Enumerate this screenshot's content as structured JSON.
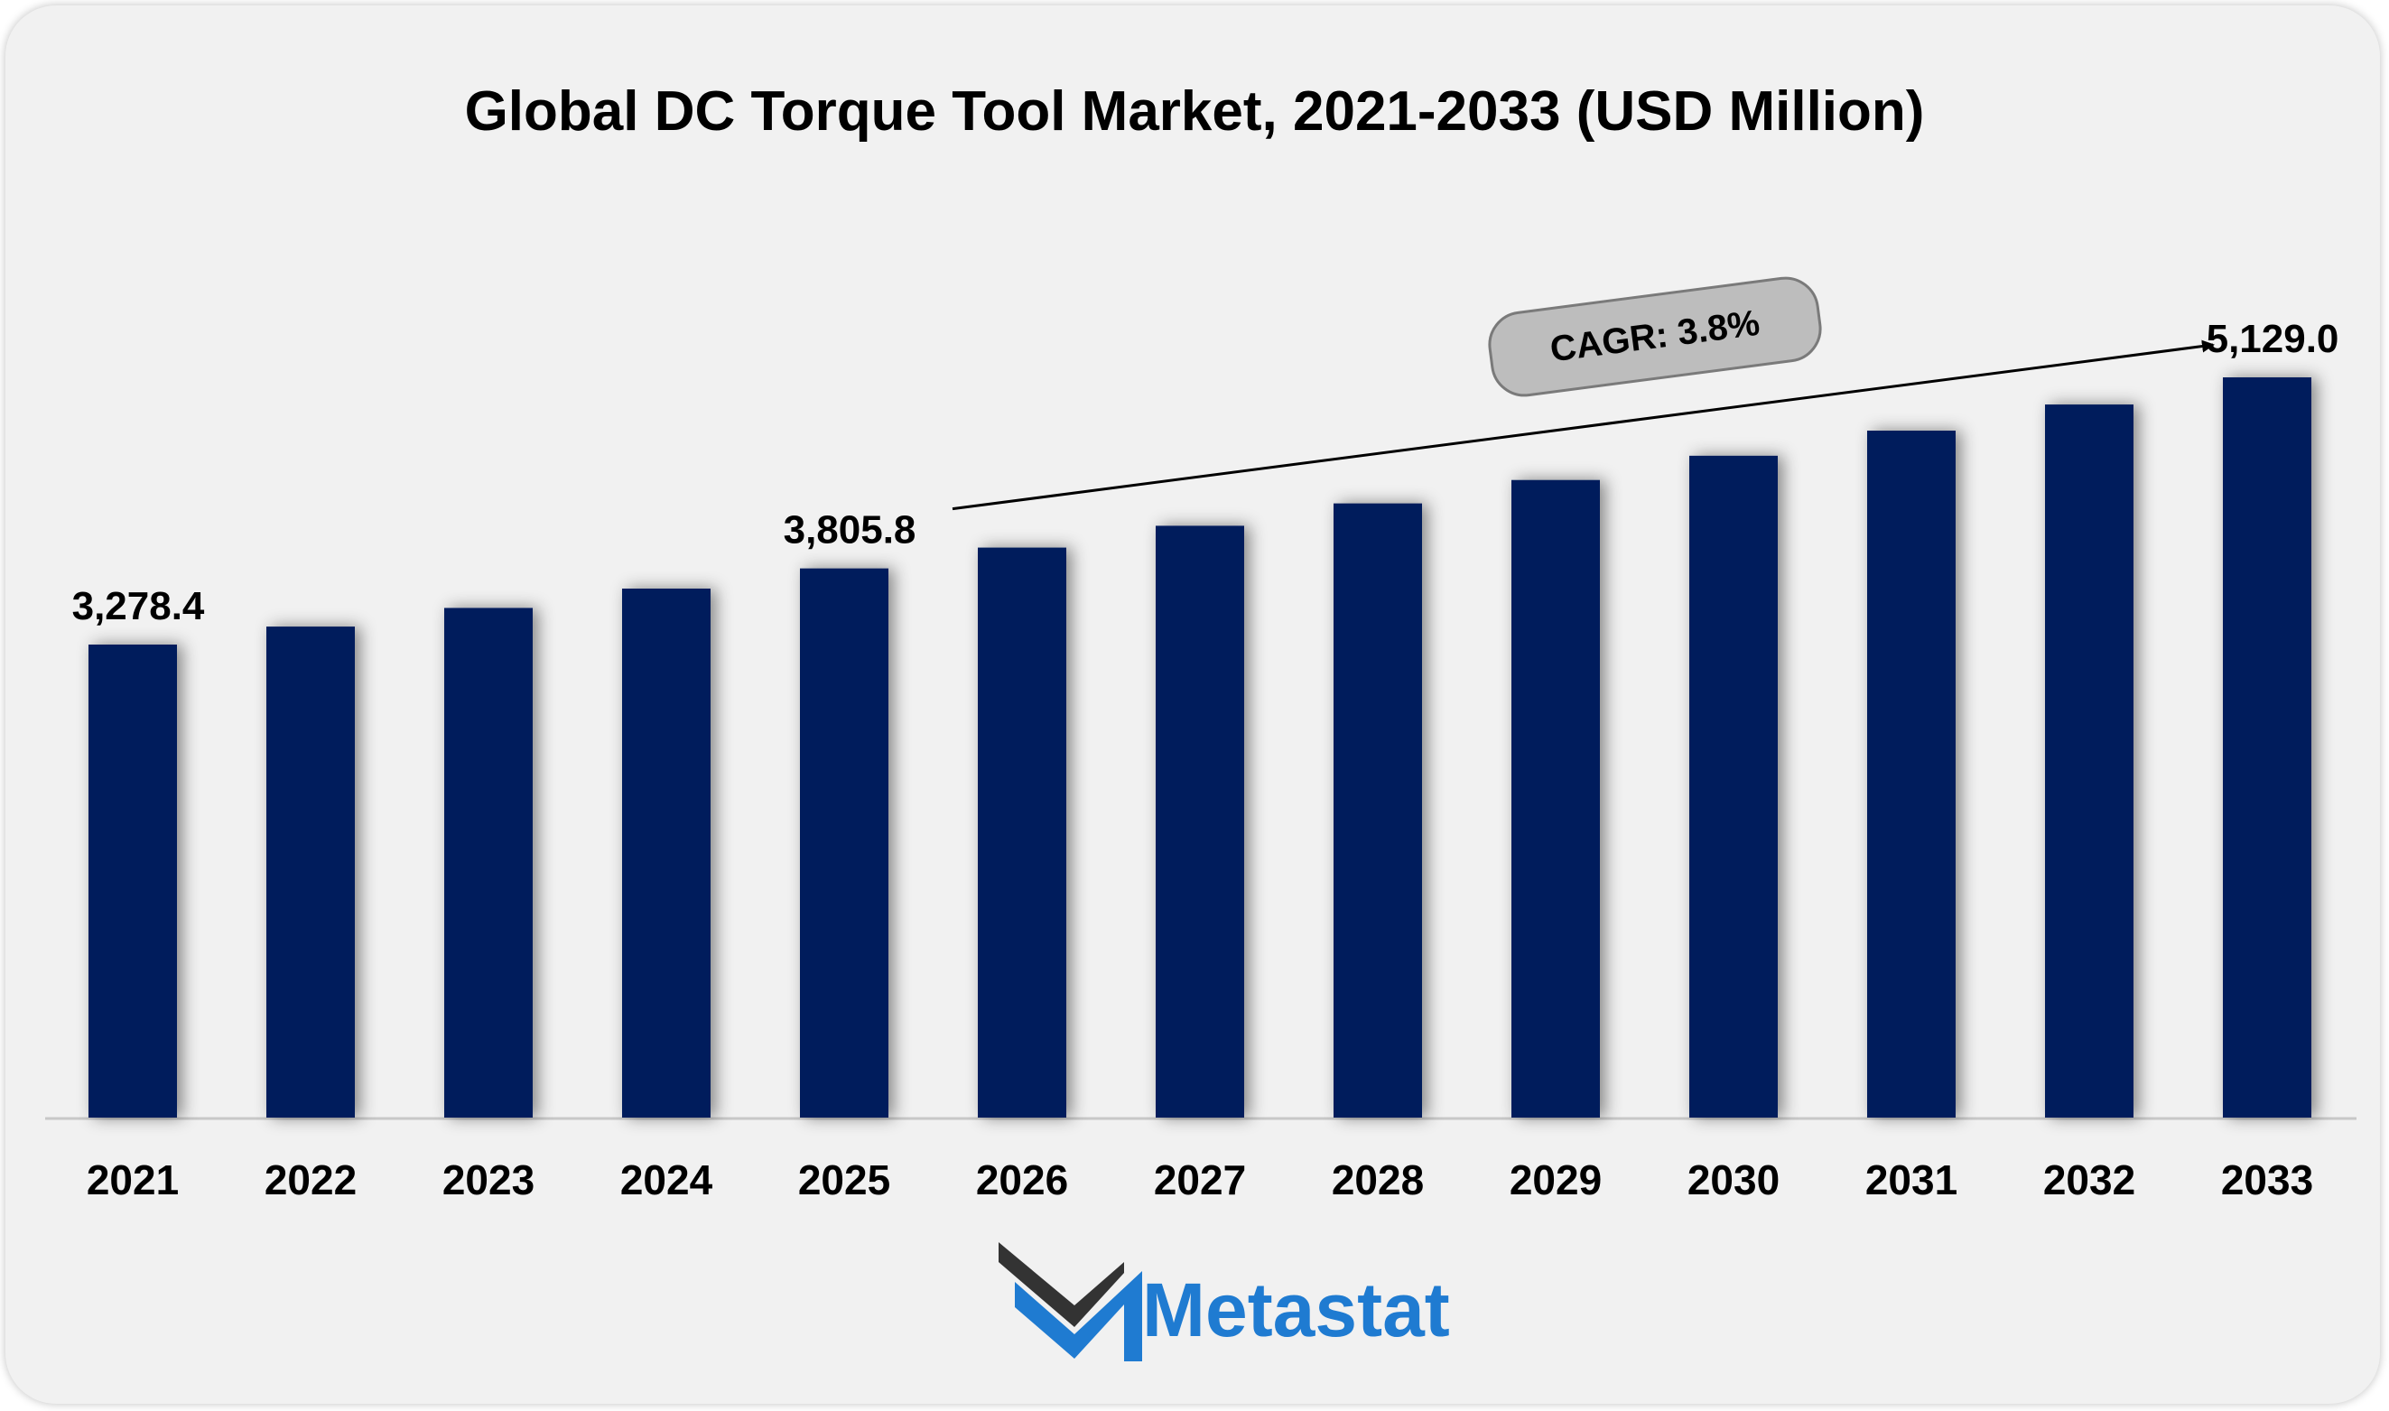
{
  "chart_data": {
    "type": "bar",
    "title": "Global DC Torque Tool Market, 2021-2033 (USD Million)",
    "xlabel": "",
    "ylabel": "",
    "categories": [
      "2021",
      "2022",
      "2023",
      "2024",
      "2025",
      "2026",
      "2027",
      "2028",
      "2029",
      "2030",
      "2031",
      "2032",
      "2033"
    ],
    "values": [
      3278.4,
      3403,
      3532,
      3666,
      3805.8,
      3950,
      4101,
      4256,
      4418,
      4586,
      4760,
      4941,
      5129.0
    ],
    "data_labels": [
      {
        "category": "2021",
        "text": "3,278.4"
      },
      {
        "category": "2025",
        "text": "3,805.8"
      },
      {
        "category": "2033",
        "text": "5,129.0"
      }
    ],
    "ylim": [
      0,
      5500
    ],
    "grid": false,
    "annotation": {
      "text": "CAGR: 3.8%",
      "from": "2025",
      "to": "2033"
    },
    "colors": {
      "bar": "#001f5b",
      "axis": "#c8c8c8",
      "pill": "#bdbdbd",
      "pill_border": "#7a7a7a"
    }
  },
  "brand": {
    "name": "Metastat",
    "colors": {
      "primary": "#1f7bd1",
      "dark": "#333333"
    }
  }
}
